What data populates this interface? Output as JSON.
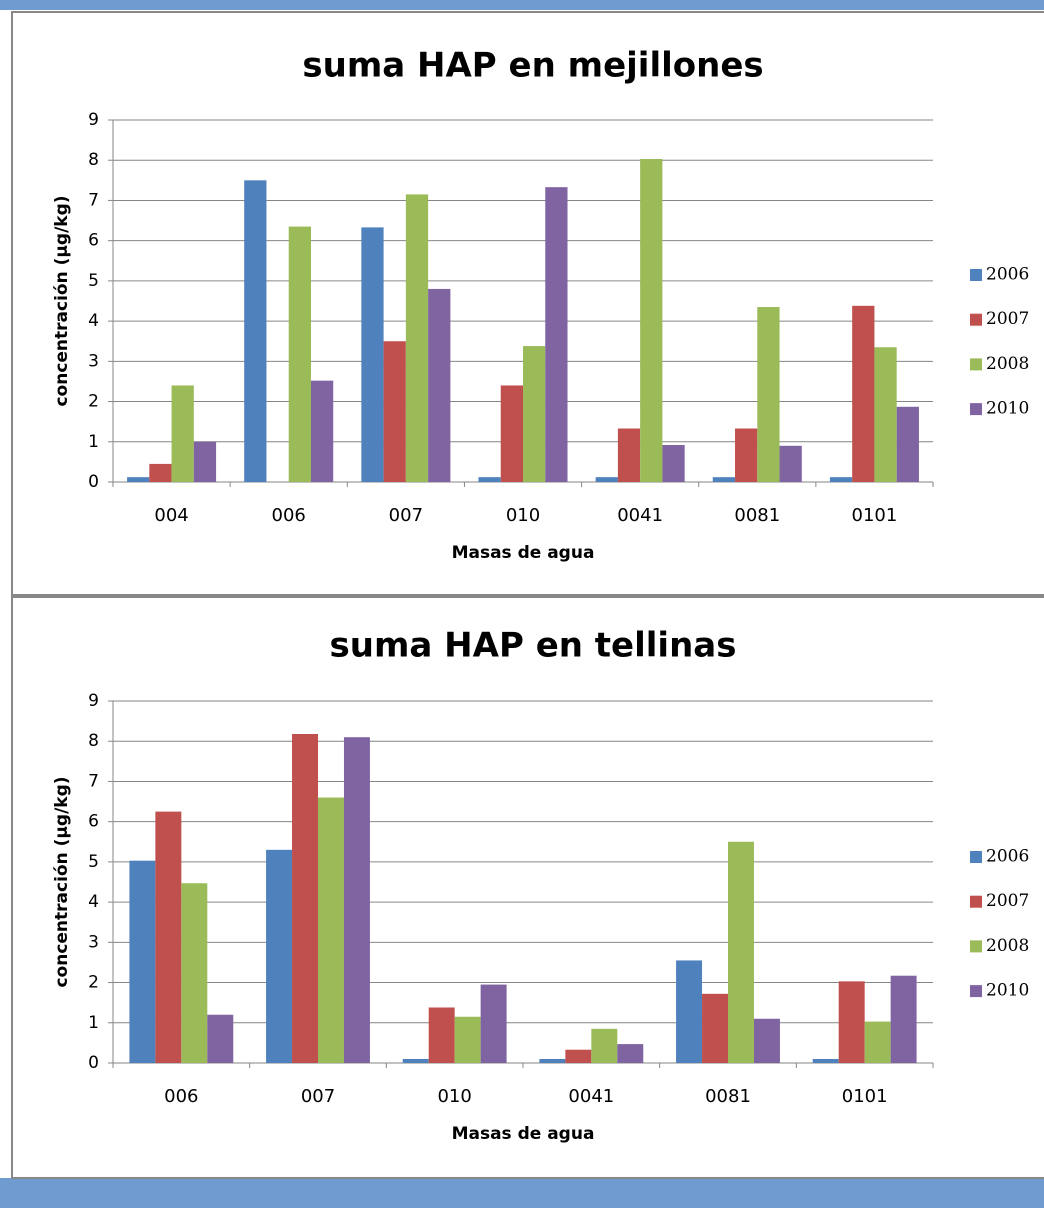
{
  "chart_data": [
    {
      "type": "bar",
      "title": "suma HAP en mejillones",
      "x_label": "Masas de agua",
      "y_label": "concentración (µg/kg)",
      "categories": [
        "004",
        "006",
        "007",
        "010",
        "0041",
        "0081",
        "0101"
      ],
      "series": [
        {
          "name": "2006",
          "color": "#4f81bd",
          "values": [
            0.12,
            7.5,
            6.33,
            0.12,
            0.12,
            0.12,
            0.12
          ]
        },
        {
          "name": "2007",
          "color": "#c0504d",
          "values": [
            0.45,
            null,
            3.5,
            2.4,
            1.33,
            1.33,
            4.38
          ]
        },
        {
          "name": "2008",
          "color": "#9bbb59",
          "values": [
            2.4,
            6.35,
            7.15,
            3.38,
            8.03,
            4.35,
            3.35
          ]
        },
        {
          "name": "2010",
          "color": "#8064a2",
          "values": [
            1.0,
            2.52,
            4.8,
            7.33,
            0.92,
            0.9,
            1.87
          ]
        }
      ],
      "ylim": [
        0,
        9
      ],
      "yticks": [
        0,
        1,
        2,
        3,
        4,
        5,
        6,
        7,
        8,
        9
      ],
      "grid": true,
      "legend": "right"
    },
    {
      "type": "bar",
      "title": "suma HAP en tellinas",
      "x_label": "Masas de agua",
      "y_label": "concentración (µg/kg)",
      "categories": [
        "006",
        "007",
        "010",
        "0041",
        "0081",
        "0101"
      ],
      "series": [
        {
          "name": "2006",
          "color": "#4f81bd",
          "values": [
            5.03,
            5.3,
            0.1,
            0.1,
            2.55,
            0.1
          ]
        },
        {
          "name": "2007",
          "color": "#c0504d",
          "values": [
            6.25,
            8.18,
            1.38,
            0.33,
            1.72,
            2.03
          ]
        },
        {
          "name": "2008",
          "color": "#9bbb59",
          "values": [
            4.47,
            6.6,
            1.15,
            0.85,
            5.5,
            1.03
          ]
        },
        {
          "name": "2010",
          "color": "#8064a2",
          "values": [
            1.2,
            8.1,
            1.95,
            0.47,
            1.1,
            2.17
          ]
        }
      ],
      "ylim": [
        0,
        9
      ],
      "yticks": [
        0,
        1,
        2,
        3,
        4,
        5,
        6,
        7,
        8,
        9
      ],
      "grid": true,
      "legend": "right"
    }
  ]
}
